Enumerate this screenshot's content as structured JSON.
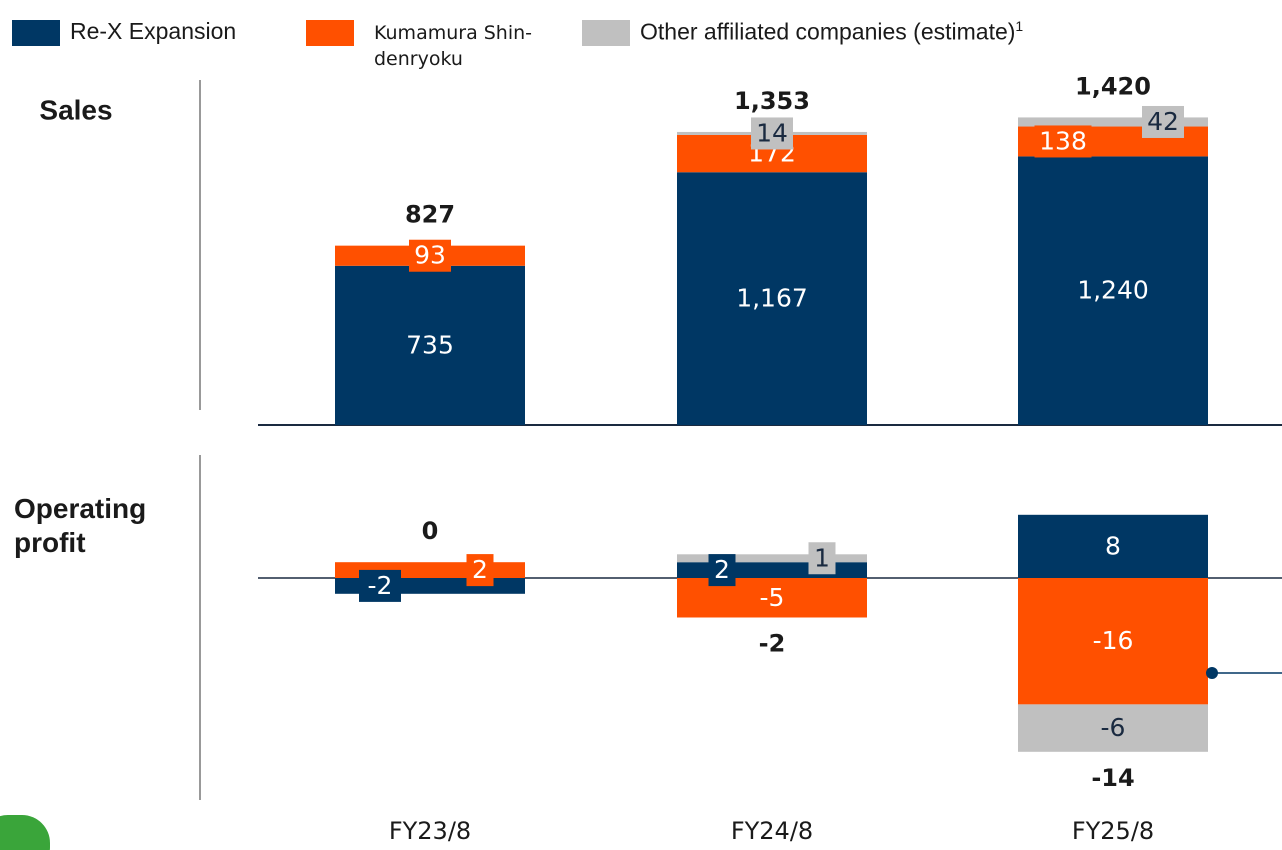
{
  "chart_data": [
    {
      "type": "bar",
      "stacked": true,
      "title": "Sales",
      "series": [
        {
          "name": "Re-X Expansion",
          "color": "#003764",
          "values": [
            735,
            1167,
            1240
          ],
          "value_labels": [
            "735",
            "1,167",
            "1,240"
          ]
        },
        {
          "name": "Kumamura Shin-denryoku",
          "color": "#ff5000",
          "values": [
            93,
            172,
            138
          ]
        },
        {
          "name": "Other affiliated companies (estimate)",
          "name_note": "1",
          "color": "#c0c0c0",
          "values": [
            null,
            14,
            42
          ]
        }
      ],
      "totals": [
        827,
        1353,
        1420
      ],
      "total_labels": [
        "827",
        "1,353",
        "1,420"
      ]
    },
    {
      "type": "bar",
      "stacked": true,
      "title": "Operating profit",
      "categories": [
        "FY23/8",
        "FY24/8",
        "FY25/8"
      ],
      "series": [
        {
          "color": "#003764",
          "values": [
            -2,
            2,
            8
          ]
        },
        {
          "color": "#ff5000",
          "values": [
            2,
            -5,
            -16
          ]
        },
        {
          "color": "#c0c0c0",
          "values": [
            null,
            1,
            -6
          ]
        }
      ],
      "totals": [
        0,
        -2,
        -14
      ]
    }
  ]
}
